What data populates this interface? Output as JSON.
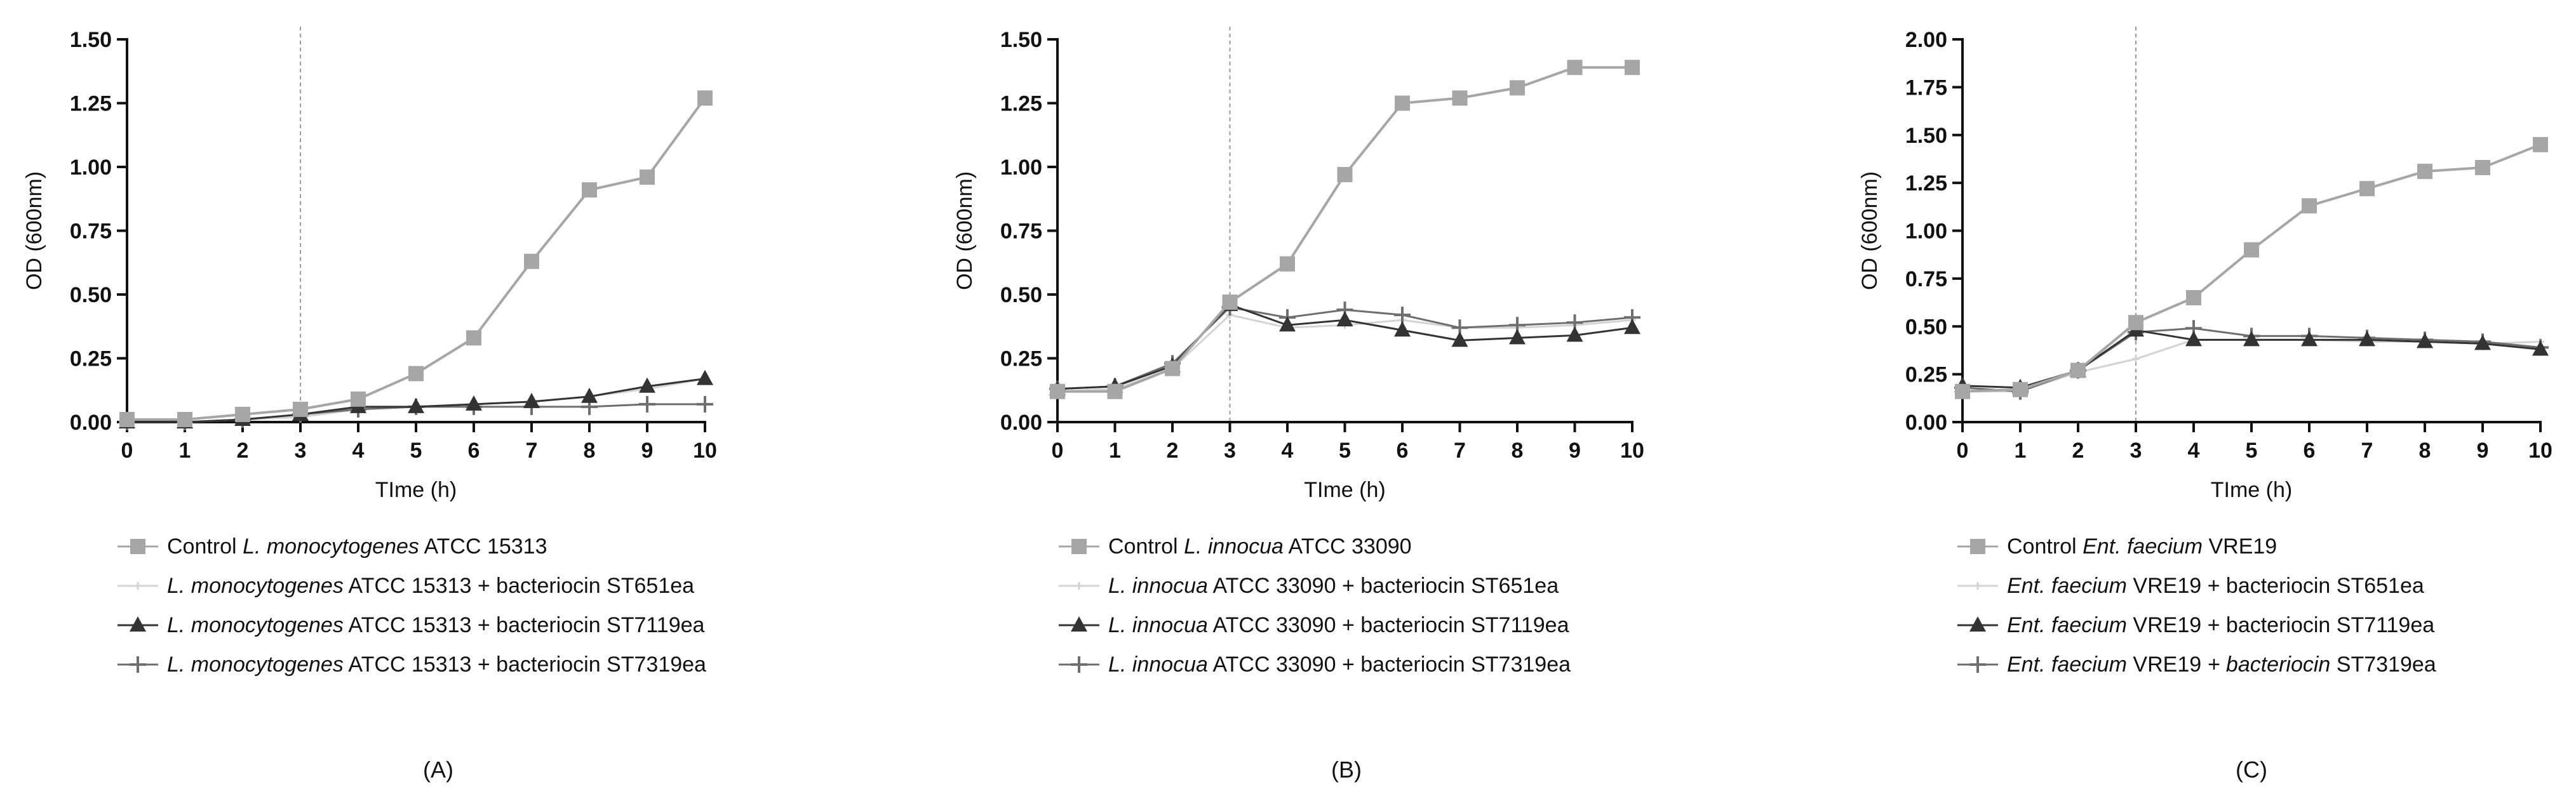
{
  "colors": {
    "control": "#a6a6a6",
    "st651ea": "#d3d3d3",
    "st7119ea": "#333333",
    "st7319ea": "#6e6e6e",
    "marker_line": "#bdbdbd"
  },
  "chart_data": [
    {
      "type": "line",
      "panel_label": "(A)",
      "xlabel": "TIme (h)",
      "ylabel": "OD (600nm)",
      "xlim": [
        0,
        10
      ],
      "ylim": [
        0,
        1.5
      ],
      "x_ticks": [
        "0",
        "1",
        "2",
        "3",
        "4",
        "5",
        "6",
        "7",
        "8",
        "9",
        "10"
      ],
      "y_ticks": [
        "0.00",
        "0.25",
        "0.50",
        "0.75",
        "1.00",
        "1.25",
        "1.50"
      ],
      "vline_x": 3,
      "x": [
        0,
        1,
        2,
        3,
        4,
        5,
        6,
        7,
        8,
        9,
        10
      ],
      "series": [
        {
          "key": "control",
          "marker": "square",
          "name_italic": "L. monocytogenes",
          "name_prefix": "Control ",
          "name_suffix": " ATCC 15313",
          "values": [
            0.01,
            0.01,
            0.03,
            0.05,
            0.09,
            0.19,
            0.33,
            0.63,
            0.91,
            0.96,
            1.27
          ]
        },
        {
          "key": "st651ea",
          "marker": "small",
          "name_prefix": "",
          "name_italic": "L. monocytogenes",
          "name_suffix": " ATCC 15313 + bacteriocin ST651ea",
          "values": [
            0.0,
            0.0,
            0.01,
            0.02,
            0.05,
            0.06,
            0.07,
            0.08,
            0.1,
            0.13,
            0.17
          ]
        },
        {
          "key": "st7119ea",
          "marker": "triangle",
          "name_prefix": "",
          "name_italic": "L. monocytogenes",
          "name_suffix": " ATCC 15313 + bacteriocin ST7119ea",
          "values": [
            0.0,
            0.0,
            0.01,
            0.03,
            0.06,
            0.06,
            0.07,
            0.08,
            0.1,
            0.14,
            0.17
          ]
        },
        {
          "key": "st7319ea",
          "marker": "plus",
          "name_prefix": "",
          "name_italic": "L. monocytogenes",
          "name_suffix": " ATCC 15313 + bacteriocin ST7319ea",
          "values": [
            0.0,
            0.0,
            0.01,
            0.03,
            0.05,
            0.06,
            0.06,
            0.06,
            0.06,
            0.07,
            0.07
          ]
        }
      ]
    },
    {
      "type": "line",
      "panel_label": "(B)",
      "xlabel": "TIme (h)",
      "ylabel": "OD (600nm)",
      "xlim": [
        0,
        10
      ],
      "ylim": [
        0,
        1.5
      ],
      "x_ticks": [
        "0",
        "1",
        "2",
        "3",
        "4",
        "5",
        "6",
        "7",
        "8",
        "9",
        "10"
      ],
      "y_ticks": [
        "0.00",
        "0.25",
        "0.50",
        "0.75",
        "1.00",
        "1.25",
        "1.50"
      ],
      "vline_x": 3,
      "x": [
        0,
        1,
        2,
        3,
        4,
        5,
        6,
        7,
        8,
        9,
        10
      ],
      "series": [
        {
          "key": "control",
          "marker": "square",
          "name_prefix": "Control ",
          "name_italic": "L. innocua",
          "name_suffix": " ATCC 33090",
          "values": [
            0.12,
            0.12,
            0.21,
            0.47,
            0.62,
            0.97,
            1.25,
            1.27,
            1.31,
            1.39,
            1.39
          ]
        },
        {
          "key": "st651ea",
          "marker": "small",
          "name_prefix": "",
          "name_italic": "L. innocua",
          "name_suffix": " ATCC 33090 + bacteriocin ST651ea",
          "values": [
            0.12,
            0.13,
            0.21,
            0.42,
            0.37,
            0.38,
            0.4,
            0.37,
            0.37,
            0.38,
            0.4
          ]
        },
        {
          "key": "st7119ea",
          "marker": "triangle",
          "name_prefix": "",
          "name_italic": "L. innocua",
          "name_suffix": " ATCC 33090 + bacteriocin ST7119ea",
          "values": [
            0.13,
            0.14,
            0.22,
            0.46,
            0.38,
            0.4,
            0.36,
            0.32,
            0.33,
            0.34,
            0.37
          ]
        },
        {
          "key": "st7319ea",
          "marker": "plus",
          "name_prefix": "",
          "name_italic": "L. innocua",
          "name_suffix": " ATCC 33090 + bacteriocin ST7319ea",
          "values": [
            0.13,
            0.14,
            0.23,
            0.45,
            0.41,
            0.44,
            0.42,
            0.37,
            0.38,
            0.39,
            0.41
          ]
        }
      ]
    },
    {
      "type": "line",
      "panel_label": "(C)",
      "xlabel": "TIme (h)",
      "ylabel": "OD (600nm)",
      "xlim": [
        0,
        10
      ],
      "ylim": [
        0,
        2.0
      ],
      "x_ticks": [
        "0",
        "1",
        "2",
        "3",
        "4",
        "5",
        "6",
        "7",
        "8",
        "9",
        "10"
      ],
      "y_ticks": [
        "0.00",
        "0.25",
        "0.50",
        "0.75",
        "1.00",
        "1.25",
        "1.50",
        "1.75",
        "2.00"
      ],
      "vline_x": 3,
      "x": [
        0,
        1,
        2,
        3,
        4,
        5,
        6,
        7,
        8,
        9,
        10
      ],
      "series": [
        {
          "key": "control",
          "marker": "square",
          "name_prefix": "Control ",
          "name_italic": "Ent. faecium",
          "name_suffix": " VRE19",
          "values": [
            0.16,
            0.17,
            0.27,
            0.52,
            0.65,
            0.9,
            1.13,
            1.22,
            1.31,
            1.33,
            1.45
          ]
        },
        {
          "key": "st651ea",
          "marker": "small",
          "name_prefix": "",
          "name_italic": "Ent. faecium",
          "name_suffix": " VRE19 + bacteriocin ST651ea",
          "values": [
            0.16,
            0.16,
            0.26,
            0.33,
            0.43,
            0.43,
            0.43,
            0.42,
            0.42,
            0.41,
            0.42
          ]
        },
        {
          "key": "st7119ea",
          "marker": "triangle",
          "name_prefix": "",
          "name_italic": "Ent. faecium",
          "name_suffix": " VRE19 + bacteriocin ST7119ea",
          "values": [
            0.19,
            0.18,
            0.27,
            0.48,
            0.43,
            0.43,
            0.43,
            0.43,
            0.42,
            0.41,
            0.38
          ]
        },
        {
          "key": "st7319ea",
          "marker": "plus",
          "name_prefix": "",
          "name_italic": "Ent. faecium",
          "name_suffix": " VRE19 + bacteriocin ST7319ea",
          "values": [
            0.18,
            0.16,
            0.27,
            0.47,
            0.49,
            0.45,
            0.45,
            0.44,
            0.43,
            0.42,
            0.39
          ]
        }
      ],
      "legend_overrides": {
        "st7319ea_suffix_italic": " + bacteriocin"
      }
    }
  ]
}
